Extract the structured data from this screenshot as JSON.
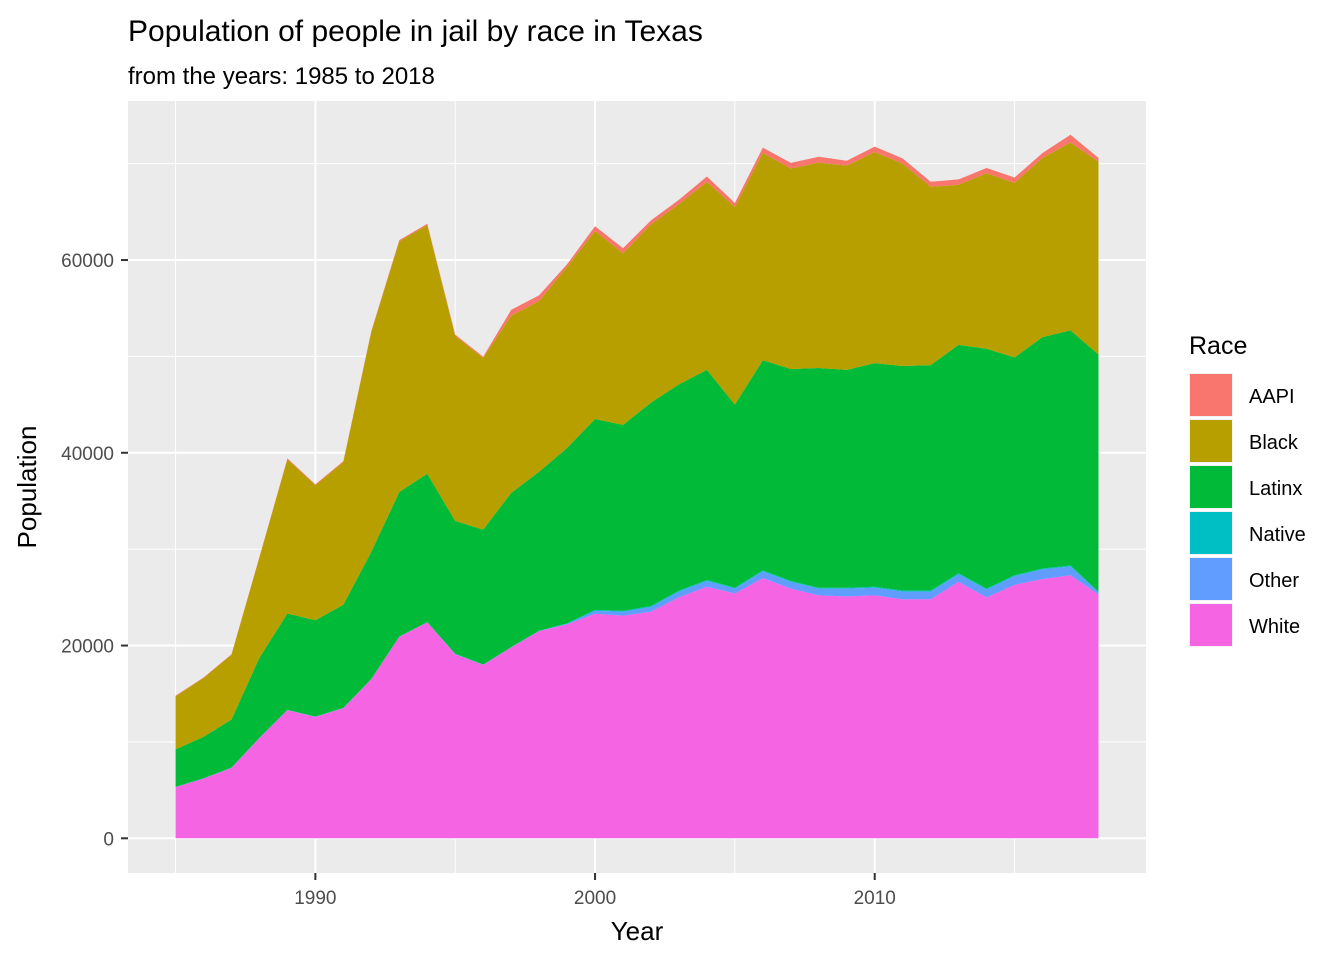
{
  "chart_data": {
    "type": "area",
    "stacked": true,
    "title": "Population of people in jail by race in Texas",
    "subtitle": "from the years: 1985 to 2018",
    "xlabel": "Year",
    "ylabel": "Population",
    "xlim": [
      1983.3,
      2019.7
    ],
    "ylim": [
      -3600,
      76500
    ],
    "x_ticks": [
      1990,
      2000,
      2010
    ],
    "x_tick_labels": [
      "1990",
      "2000",
      "2010"
    ],
    "y_ticks": [
      0,
      20000,
      40000,
      60000
    ],
    "y_tick_labels": [
      "0",
      "20000",
      "40000",
      "60000"
    ],
    "grid": true,
    "legend_position": "right",
    "legend_title": "Race",
    "x": [
      1985,
      1986,
      1987,
      1988,
      1989,
      1990,
      1991,
      1992,
      1993,
      1994,
      1995,
      1996,
      1997,
      1998,
      1999,
      2000,
      2001,
      2002,
      2003,
      2004,
      2005,
      2006,
      2007,
      2008,
      2009,
      2010,
      2011,
      2012,
      2013,
      2014,
      2015,
      2016,
      2017,
      2018
    ],
    "series": [
      {
        "name": "AAPI",
        "color": "#F8766D",
        "values": [
          60,
          60,
          70,
          80,
          90,
          90,
          100,
          110,
          130,
          140,
          130,
          140,
          600,
          610,
          260,
          500,
          520,
          420,
          450,
          570,
          420,
          560,
          580,
          620,
          500,
          560,
          540,
          520,
          570,
          550,
          560,
          500,
          800,
          400
        ]
      },
      {
        "name": "Black",
        "color": "#B79F00",
        "values": [
          5500,
          6100,
          6700,
          10400,
          16000,
          14000,
          14800,
          22800,
          26000,
          25800,
          19200,
          17800,
          18400,
          17700,
          18800,
          19500,
          17800,
          18500,
          18700,
          19500,
          20500,
          21500,
          20800,
          21300,
          21200,
          21900,
          21000,
          18500,
          16600,
          18200,
          18100,
          18600,
          19500,
          20000
        ]
      },
      {
        "name": "Latinx",
        "color": "#00BA38",
        "values": [
          3900,
          4300,
          5000,
          8300,
          10000,
          10000,
          10700,
          13200,
          15000,
          15400,
          13800,
          14000,
          16000,
          16500,
          18200,
          19800,
          19300,
          21100,
          21400,
          21800,
          19000,
          21800,
          22000,
          22800,
          22600,
          23200,
          23300,
          23400,
          23700,
          24900,
          22600,
          24000,
          24400,
          24600
        ]
      },
      {
        "name": "Native",
        "color": "#00BFC4",
        "values": [
          20,
          20,
          20,
          20,
          20,
          20,
          20,
          20,
          20,
          20,
          20,
          20,
          20,
          20,
          50,
          100,
          100,
          100,
          100,
          100,
          100,
          100,
          100,
          100,
          100,
          100,
          100,
          100,
          100,
          100,
          100,
          100,
          100,
          100
        ]
      },
      {
        "name": "Other",
        "color": "#619CFF",
        "values": [
          10,
          10,
          10,
          10,
          10,
          10,
          10,
          10,
          10,
          10,
          10,
          10,
          10,
          10,
          50,
          300,
          400,
          500,
          600,
          600,
          500,
          700,
          700,
          700,
          800,
          800,
          800,
          800,
          800,
          800,
          900,
          1000,
          900,
          200
        ]
      },
      {
        "name": "White",
        "color": "#F564E3",
        "values": [
          5300,
          6200,
          7300,
          10400,
          13300,
          12600,
          13500,
          16500,
          20900,
          22400,
          19100,
          18000,
          19800,
          21500,
          22200,
          23300,
          23100,
          23500,
          25000,
          26100,
          25400,
          27000,
          25900,
          25200,
          25100,
          25200,
          24800,
          24800,
          26600,
          25000,
          26300,
          26900,
          27300,
          25300
        ]
      }
    ]
  }
}
